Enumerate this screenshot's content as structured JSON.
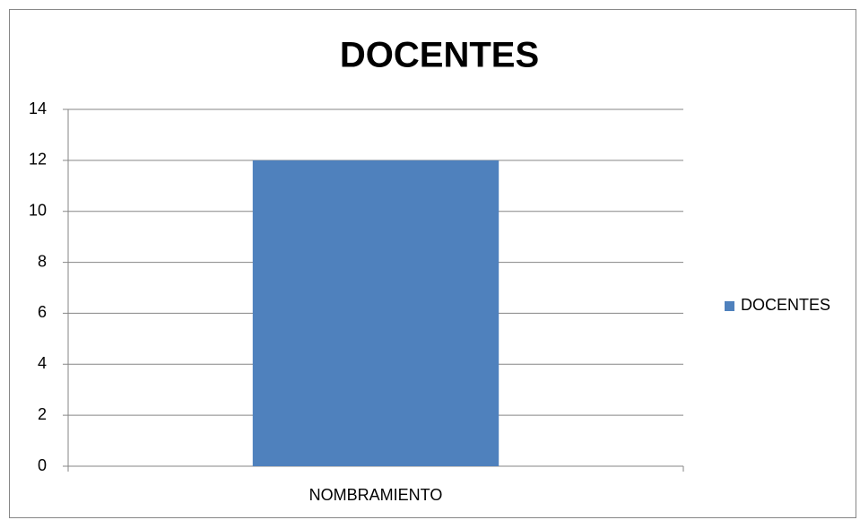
{
  "chart_data": {
    "type": "bar",
    "title": "DOCENTES",
    "categories": [
      "NOMBRAMIENTO"
    ],
    "series": [
      {
        "name": "DOCENTES",
        "color": "#4f81bd",
        "values": [
          12
        ]
      }
    ],
    "ylim": [
      0,
      14
    ],
    "yticks": [
      0,
      2,
      4,
      6,
      8,
      10,
      12,
      14
    ],
    "grid": true,
    "legend": "right"
  }
}
